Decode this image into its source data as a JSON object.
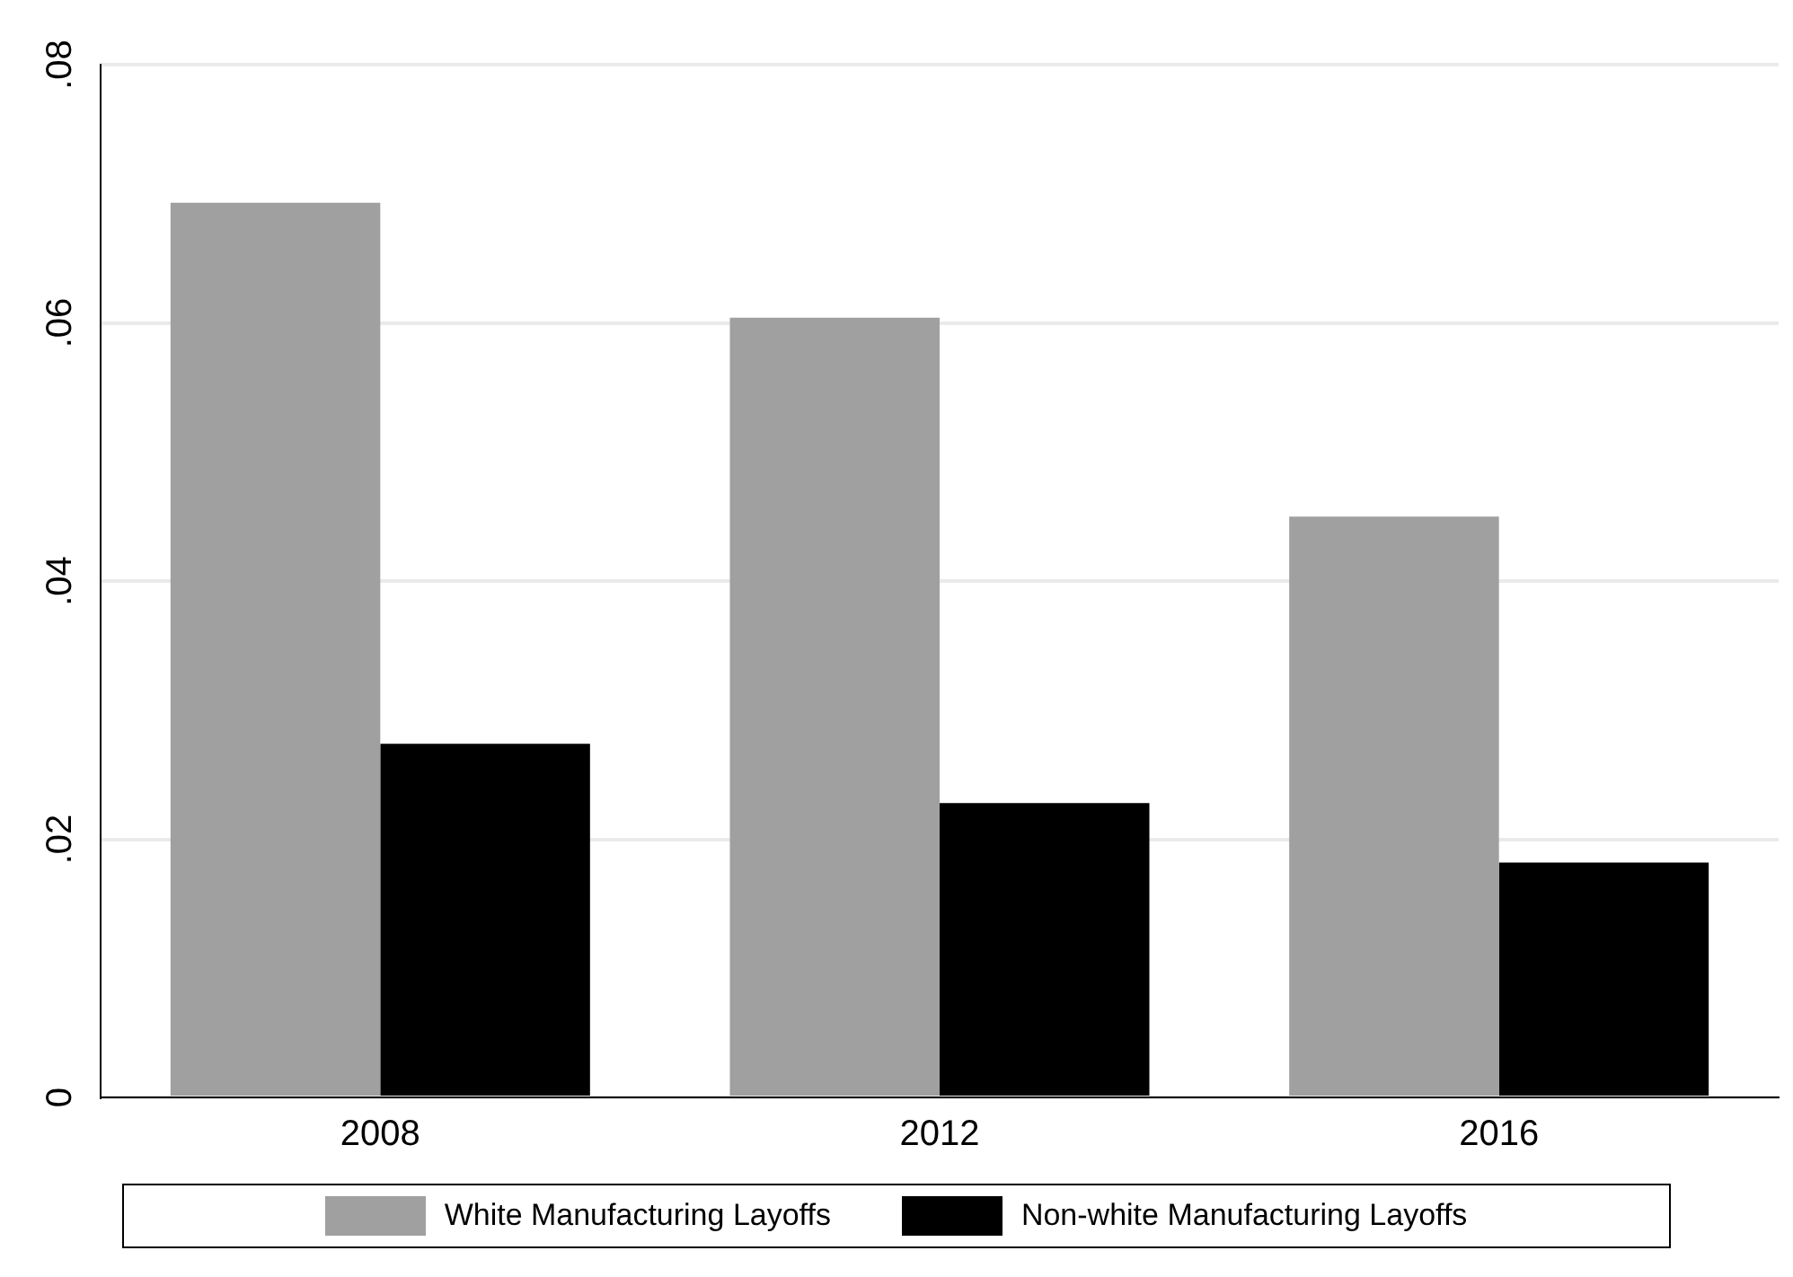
{
  "chart_data": {
    "type": "bar",
    "categories": [
      "2008",
      "2012",
      "2016"
    ],
    "series": [
      {
        "name": "White Manufacturing Layoffs",
        "color": "#a0a0a0",
        "values": [
          0.0693,
          0.0604,
          0.045
        ]
      },
      {
        "name": "Non-white Manufacturing Layoffs",
        "color": "#000000",
        "values": [
          0.0274,
          0.0228,
          0.0182
        ]
      }
    ],
    "ylim": [
      0,
      0.08
    ],
    "yticks": [
      {
        "value": 0,
        "label": "0"
      },
      {
        "value": 0.02,
        "label": ".02"
      },
      {
        "value": 0.04,
        "label": ".04"
      },
      {
        "value": 0.06,
        "label": ".06"
      },
      {
        "value": 0.08,
        "label": ".08"
      }
    ],
    "grid": "y",
    "legend": "bottom"
  }
}
